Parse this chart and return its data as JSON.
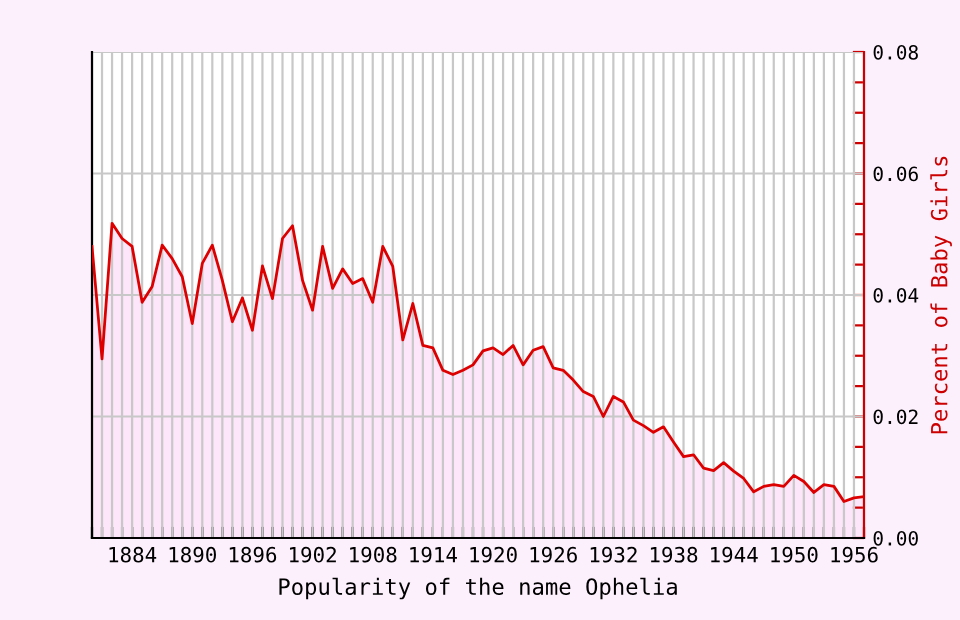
{
  "chart_data": {
    "type": "area",
    "xlabel": "Popularity of the name Ophelia",
    "ylabel": "Percent of Baby Girls",
    "x": [
      1880,
      1881,
      1882,
      1883,
      1884,
      1885,
      1886,
      1887,
      1888,
      1889,
      1890,
      1891,
      1892,
      1893,
      1894,
      1895,
      1896,
      1897,
      1898,
      1899,
      1900,
      1901,
      1902,
      1903,
      1904,
      1905,
      1906,
      1907,
      1908,
      1909,
      1910,
      1911,
      1912,
      1913,
      1914,
      1915,
      1916,
      1917,
      1918,
      1919,
      1920,
      1921,
      1922,
      1923,
      1924,
      1925,
      1926,
      1927,
      1928,
      1929,
      1930,
      1931,
      1932,
      1933,
      1934,
      1935,
      1936,
      1937,
      1938,
      1939,
      1940,
      1941,
      1942,
      1943,
      1944,
      1945,
      1946,
      1947,
      1948,
      1949,
      1950,
      1951,
      1952,
      1953,
      1954,
      1955,
      1956,
      1957
    ],
    "series": [
      {
        "color": "#dd0000",
        "values": [
          0.048,
          0.0295,
          0.0518,
          0.0493,
          0.048,
          0.0388,
          0.0414,
          0.0482,
          0.046,
          0.043,
          0.0353,
          0.0452,
          0.0482,
          0.0424,
          0.0356,
          0.0395,
          0.0342,
          0.0448,
          0.0394,
          0.0493,
          0.0514,
          0.0424,
          0.0375,
          0.048,
          0.0411,
          0.0443,
          0.0419,
          0.0427,
          0.0388,
          0.048,
          0.0447,
          0.0326,
          0.0386,
          0.0317,
          0.0313,
          0.0276,
          0.0269,
          0.0276,
          0.0285,
          0.0308,
          0.0313,
          0.0302,
          0.0317,
          0.0285,
          0.0309,
          0.0315,
          0.028,
          0.0276,
          0.026,
          0.0241,
          0.0233,
          0.02,
          0.0233,
          0.0224,
          0.0194,
          0.0185,
          0.0174,
          0.0183,
          0.0158,
          0.0134,
          0.0137,
          0.0115,
          0.0111,
          0.0124,
          0.011,
          0.0098,
          0.0076,
          0.0085,
          0.0088,
          0.0085,
          0.0103,
          0.0093,
          0.0075,
          0.0088,
          0.0085,
          0.006,
          0.0066,
          0.0068
        ]
      }
    ],
    "xlim": [
      1880,
      1957
    ],
    "xticks": [
      {
        "value": 1880,
        "label": null
      },
      {
        "value": 1881,
        "label": null
      },
      {
        "value": 1882,
        "label": null
      },
      {
        "value": 1883,
        "label": null
      },
      1884,
      {
        "value": 1885,
        "label": null
      },
      {
        "value": 1886,
        "label": null
      },
      {
        "value": 1887,
        "label": null
      },
      {
        "value": 1888,
        "label": null
      },
      {
        "value": 1889,
        "label": null
      },
      1890,
      {
        "value": 1891,
        "label": null
      },
      {
        "value": 1892,
        "label": null
      },
      {
        "value": 1893,
        "label": null
      },
      {
        "value": 1894,
        "label": null
      },
      {
        "value": 1895,
        "label": null
      },
      1896,
      {
        "value": 1897,
        "label": null
      },
      {
        "value": 1898,
        "label": null
      },
      {
        "value": 1899,
        "label": null
      },
      {
        "value": 1900,
        "label": null
      },
      {
        "value": 1901,
        "label": null
      },
      1902,
      {
        "value": 1903,
        "label": null
      },
      {
        "value": 1904,
        "label": null
      },
      {
        "value": 1905,
        "label": null
      },
      {
        "value": 1906,
        "label": null
      },
      {
        "value": 1907,
        "label": null
      },
      1908,
      {
        "value": 1909,
        "label": null
      },
      {
        "value": 1910,
        "label": null
      },
      {
        "value": 1911,
        "label": null
      },
      {
        "value": 1912,
        "label": null
      },
      {
        "value": 1913,
        "label": null
      },
      1914,
      {
        "value": 1915,
        "label": null
      },
      {
        "value": 1916,
        "label": null
      },
      {
        "value": 1917,
        "label": null
      },
      {
        "value": 1918,
        "label": null
      },
      {
        "value": 1919,
        "label": null
      },
      1920,
      {
        "value": 1921,
        "label": null
      },
      {
        "value": 1922,
        "label": null
      },
      {
        "value": 1923,
        "label": null
      },
      {
        "value": 1924,
        "label": null
      },
      {
        "value": 1925,
        "label": null
      },
      1926,
      {
        "value": 1927,
        "label": null
      },
      {
        "value": 1928,
        "label": null
      },
      {
        "value": 1929,
        "label": null
      },
      {
        "value": 1930,
        "label": null
      },
      {
        "value": 1931,
        "label": null
      },
      1932,
      {
        "value": 1933,
        "label": null
      },
      {
        "value": 1934,
        "label": null
      },
      {
        "value": 1935,
        "label": null
      },
      {
        "value": 1936,
        "label": null
      },
      {
        "value": 1937,
        "label": null
      },
      1938,
      {
        "value": 1939,
        "label": null
      },
      {
        "value": 1940,
        "label": null
      },
      {
        "value": 1941,
        "label": null
      },
      {
        "value": 1942,
        "label": null
      },
      {
        "value": 1943,
        "label": null
      },
      1944,
      {
        "value": 1945,
        "label": null
      },
      {
        "value": 1946,
        "label": null
      },
      {
        "value": 1947,
        "label": null
      },
      {
        "value": 1948,
        "label": null
      },
      {
        "value": 1949,
        "label": null
      },
      1950,
      {
        "value": 1951,
        "label": null
      },
      {
        "value": 1952,
        "label": null
      },
      {
        "value": 1953,
        "label": null
      },
      {
        "value": 1954,
        "label": null
      },
      {
        "value": 1955,
        "label": null
      },
      1956,
      {
        "value": 1957,
        "label": null
      }
    ],
    "ylim": [
      0,
      0.08
    ],
    "yticks": [
      {
        "value": 0,
        "label": "0.00"
      },
      {
        "value": 0.005,
        "label": null
      },
      {
        "value": 0.01,
        "label": null
      },
      {
        "value": 0.015,
        "label": null
      },
      {
        "value": 0.02,
        "label": "0.02"
      },
      {
        "value": 0.025,
        "label": null
      },
      {
        "value": 0.03,
        "label": null
      },
      {
        "value": 0.035,
        "label": null
      },
      {
        "value": 0.04,
        "label": "0.04"
      },
      {
        "value": 0.045,
        "label": null
      },
      {
        "value": 0.05,
        "label": null
      },
      {
        "value": 0.055,
        "label": null
      },
      {
        "value": 0.06,
        "label": "0.06"
      },
      {
        "value": 0.065,
        "label": null
      },
      {
        "value": 0.07,
        "label": null
      },
      {
        "value": 0.075,
        "label": null
      },
      {
        "value": 0.08,
        "label": "0.08"
      }
    ],
    "grid": true
  }
}
